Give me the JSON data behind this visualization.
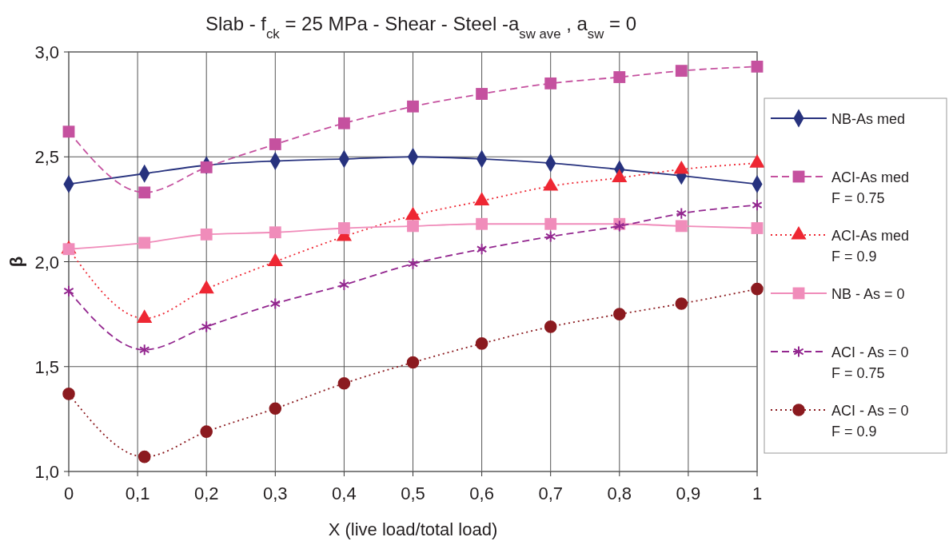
{
  "chart_data": {
    "type": "line",
    "title": "Slab - f$_{ck}$  = 25 MPa - Shear - Steel -a$_{sw ave}$ , a$_{sw}$ = 0",
    "xlabel": "X (live load/total load)",
    "ylabel": "β",
    "x": [
      0,
      0.11,
      0.2,
      0.3,
      0.4,
      0.5,
      0.6,
      0.7,
      0.8,
      0.89,
      1
    ],
    "xlim": [
      0,
      1
    ],
    "xticks": [
      0,
      {
        "value": 0.1,
        "label": "0,1"
      },
      {
        "value": 0.2,
        "label": "0,2"
      },
      {
        "value": 0.3,
        "label": "0,3"
      },
      {
        "value": 0.4,
        "label": "0,4"
      },
      {
        "value": 0.5,
        "label": "0,5"
      },
      {
        "value": 0.6,
        "label": "0,6"
      },
      {
        "value": 0.7,
        "label": "0,7"
      },
      {
        "value": 0.8,
        "label": "0,8"
      },
      {
        "value": 0.9,
        "label": "0,9"
      },
      1
    ],
    "ylim": [
      1,
      3
    ],
    "yticks": [
      {
        "value": 1,
        "label": "1,0"
      },
      {
        "value": 1.5,
        "label": "1,5"
      },
      {
        "value": 2,
        "label": "2,0"
      },
      {
        "value": 2.5,
        "label": "2,5"
      },
      {
        "value": 3,
        "label": "3,0"
      }
    ],
    "grid": true,
    "legend": "right",
    "series": [
      {
        "name": "NB-As med",
        "color": "#27327e",
        "marker": "diamond",
        "line_style": "solid",
        "values": [
          2.37,
          2.42,
          2.46,
          2.48,
          2.49,
          2.5,
          2.49,
          2.47,
          2.44,
          2.41,
          2.37
        ]
      },
      {
        "name": "ACI-As med\nF = 0.75",
        "color": "#c5519f",
        "marker": "square",
        "line_style": "dashed",
        "values": [
          2.62,
          2.33,
          2.45,
          2.56,
          2.66,
          2.74,
          2.8,
          2.85,
          2.88,
          2.91,
          2.93
        ]
      },
      {
        "name": "ACI-As med\nF = 0.9",
        "color": "#ee2733",
        "marker": "triangle",
        "line_style": "dotted",
        "values": [
          2.06,
          1.73,
          1.87,
          2,
          2.12,
          2.22,
          2.29,
          2.36,
          2.4,
          2.44,
          2.47
        ]
      },
      {
        "name": "NB - As = 0",
        "color": "#f08cba",
        "marker": "square",
        "line_style": "solid",
        "values": [
          2.06,
          2.09,
          2.13,
          2.14,
          2.16,
          2.17,
          2.18,
          2.18,
          2.18,
          2.17,
          2.16
        ]
      },
      {
        "name": "ACI - As = 0\nF = 0.75",
        "color": "#93278f",
        "marker": "cross",
        "line_style": "dashed",
        "values": [
          1.86,
          1.58,
          1.69,
          1.8,
          1.89,
          1.99,
          2.06,
          2.12,
          2.17,
          2.23,
          2.27
        ]
      },
      {
        "name": "ACI - As = 0\nF = 0.9",
        "color": "#8b1a1f",
        "marker": "circle",
        "line_style": "dotted",
        "values": [
          1.37,
          1.07,
          1.19,
          1.3,
          1.42,
          1.52,
          1.61,
          1.69,
          1.75,
          1.8,
          1.87
        ]
      }
    ]
  }
}
